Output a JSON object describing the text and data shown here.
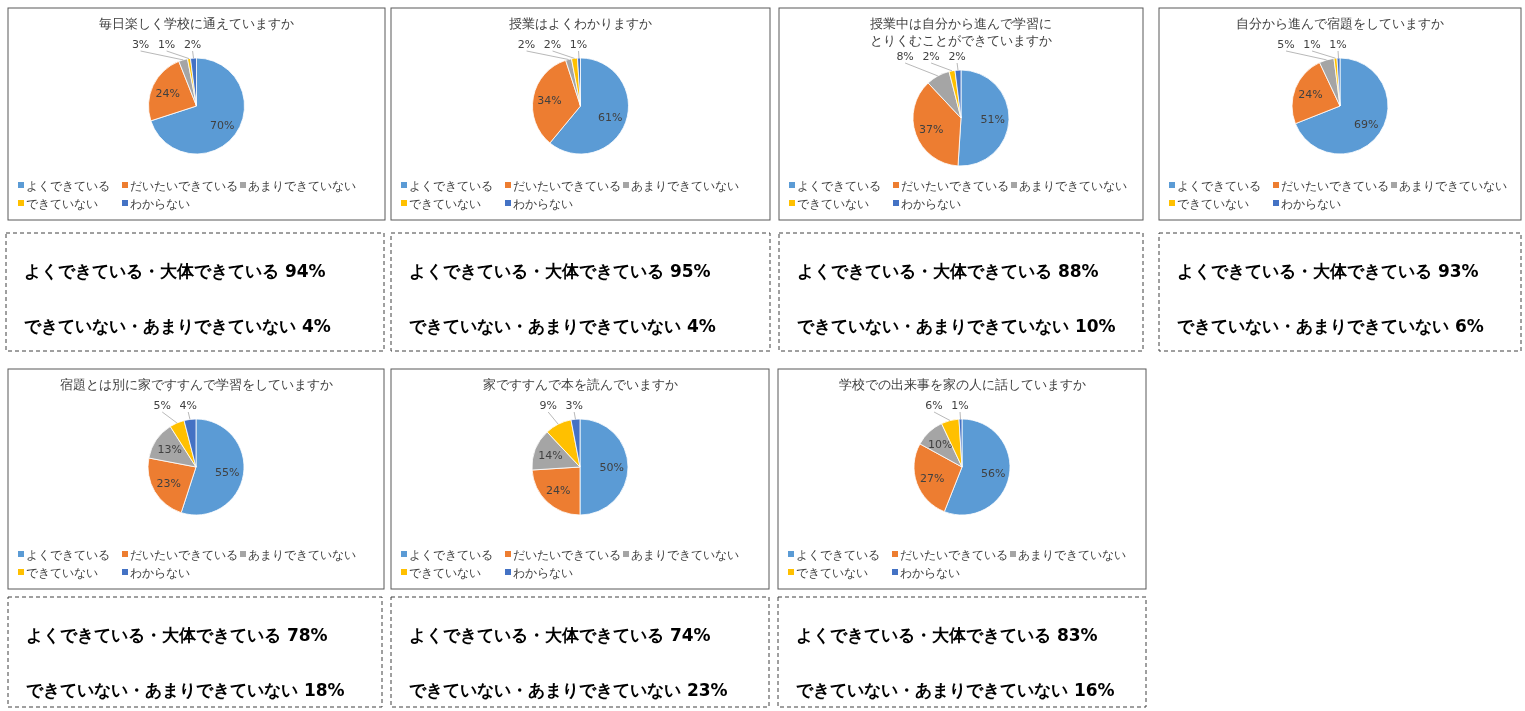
{
  "chart_data": [
    {
      "type": "pie",
      "title": "毎日楽しく学校に通えていますか",
      "categories": [
        "よくできている",
        "だいたいできている",
        "あまりできていない",
        "できていない",
        "わからない"
      ],
      "values": [
        70,
        24,
        3,
        1,
        2
      ],
      "value_labels": [
        "70%",
        "24%",
        "3%",
        "1%",
        "2%"
      ],
      "colors": [
        "#5b9bd5",
        "#ed7d31",
        "#a5a5a5",
        "#ffc000",
        "#4472c4"
      ],
      "legend": "bottom"
    },
    {
      "type": "pie",
      "title": "授業はよくわかりますか",
      "categories": [
        "よくできている",
        "だいたいできている",
        "あまりできていない",
        "できていない",
        "わからない"
      ],
      "values": [
        61,
        34,
        2,
        2,
        1
      ],
      "value_labels": [
        "61%",
        "34%",
        "2%",
        "2%",
        "1%"
      ],
      "colors": [
        "#5b9bd5",
        "#ed7d31",
        "#a5a5a5",
        "#ffc000",
        "#4472c4"
      ],
      "legend": "bottom"
    },
    {
      "type": "pie",
      "title": "授業中は自分から進んで学習にとりくむことができていますか",
      "categories": [
        "よくできている",
        "だいたいできている",
        "あまりできていない",
        "できていない",
        "わからない"
      ],
      "values": [
        51,
        37,
        8,
        2,
        2
      ],
      "value_labels": [
        "51%",
        "37%",
        "8%",
        "2%",
        "2%"
      ],
      "colors": [
        "#5b9bd5",
        "#ed7d31",
        "#a5a5a5",
        "#ffc000",
        "#4472c4"
      ],
      "legend": "bottom"
    },
    {
      "type": "pie",
      "title": "自分から進んで宿題をしていますか",
      "categories": [
        "よくできている",
        "だいたいできている",
        "あまりできていない",
        "できていない",
        "わからない"
      ],
      "values": [
        69,
        24,
        5,
        1,
        1
      ],
      "value_labels": [
        "69%",
        "24%",
        "5%",
        "1%",
        "1%"
      ],
      "colors": [
        "#5b9bd5",
        "#ed7d31",
        "#a5a5a5",
        "#ffc000",
        "#4472c4"
      ],
      "legend": "bottom"
    },
    {
      "type": "other",
      "annotations": [
        "よくできている・大体できている 94%",
        "できていない・あまりできていない 4%"
      ]
    },
    {
      "type": "other",
      "annotations": [
        "よくできている・大体できている 95%",
        "できていない・あまりできていない 4%"
      ]
    },
    {
      "type": "other",
      "annotations": [
        "よくできている・大体できている 88%",
        "できていない・あまりできていない 10%"
      ]
    },
    {
      "type": "other",
      "annotations": [
        "よくできている・大体できている 93%",
        "できていない・あまりできていない 6%"
      ]
    },
    {
      "type": "pie",
      "title": "宿題とは別に家ですすんで学習をしていますか",
      "categories": [
        "よくできている",
        "だいたいできている",
        "あまりできていない",
        "できていない",
        "わからない"
      ],
      "values": [
        55,
        23,
        13,
        5,
        4
      ],
      "value_labels": [
        "55%",
        "23%",
        "13%",
        "5%",
        "4%"
      ],
      "colors": [
        "#5b9bd5",
        "#ed7d31",
        "#a5a5a5",
        "#ffc000",
        "#4472c4"
      ],
      "legend": "bottom"
    },
    {
      "type": "pie",
      "title": "家ですすんで本を読んでいますか",
      "categories": [
        "よくできている",
        "だいたいできている",
        "あまりできていない",
        "できていない",
        "わからない"
      ],
      "values": [
        50,
        24,
        14,
        9,
        3
      ],
      "value_labels": [
        "50%",
        "24%",
        "14%",
        "9%",
        "3%"
      ],
      "colors": [
        "#5b9bd5",
        "#ed7d31",
        "#a5a5a5",
        "#ffc000",
        "#4472c4"
      ],
      "legend": "bottom"
    },
    {
      "type": "pie",
      "title": "学校での出来事を家の人に話していますか",
      "categories": [
        "よくできている",
        "だいたいできている",
        "あまりできていない",
        "できていない",
        "わからない"
      ],
      "values": [
        56,
        27,
        10,
        6,
        1
      ],
      "value_labels": [
        "56%",
        "27%",
        "10%",
        "6%",
        "1%"
      ],
      "colors": [
        "#5b9bd5",
        "#ed7d31",
        "#a5a5a5",
        "#ffc000",
        "#4472c4"
      ],
      "legend": "bottom"
    },
    {
      "type": "other",
      "annotations": [
        "よくできている・大体できている 78%",
        "できていない・あまりできていない 18%"
      ]
    },
    {
      "type": "other",
      "annotations": [
        "よくできている・大体できている 74%",
        "できていない・あまりできていない 23%"
      ]
    },
    {
      "type": "other",
      "annotations": [
        "よくできている・大体できている 83%",
        "できていない・あまりできていない 16%"
      ]
    }
  ]
}
